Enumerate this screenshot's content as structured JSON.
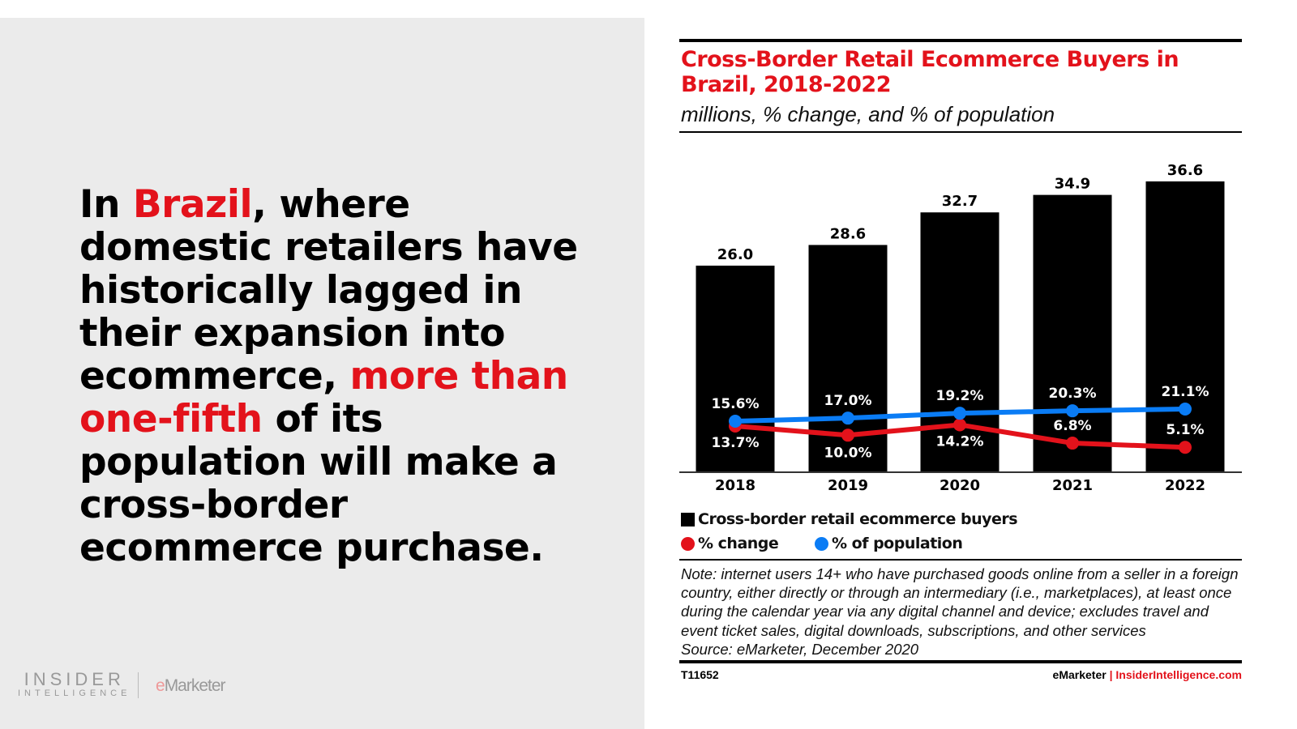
{
  "headline": {
    "p1": "In ",
    "p2": "Brazil",
    "p3": ", where domestic retailers have historically lagged in their expansion into ecommerce, ",
    "p4": "more than one-fifth",
    "p5": " of its population will make a cross-border ecommerce purchase."
  },
  "logos": {
    "insider": "INSIDER",
    "intelligence": "INTELLIGENCE",
    "emarketer_e": "e",
    "emarketer_rest": "Marketer"
  },
  "chart_data": {
    "type": "bar",
    "title": "Cross-Border Retail Ecommerce Buyers in Brazil, 2018-2022",
    "subtitle": "millions, % change, and % of population",
    "categories": [
      "2018",
      "2019",
      "2020",
      "2021",
      "2022"
    ],
    "series": [
      {
        "name": "Cross-border retail ecommerce buyers",
        "type": "bar",
        "values": [
          26.0,
          28.6,
          32.7,
          34.9,
          36.6
        ],
        "labels": [
          "26.0",
          "28.6",
          "32.7",
          "34.9",
          "36.6"
        ],
        "color": "#000000"
      },
      {
        "name": "% change",
        "type": "line",
        "values": [
          13.7,
          10.0,
          14.2,
          6.8,
          5.1
        ],
        "labels": [
          "13.7%",
          "10.0%",
          "14.2%",
          "6.8%",
          "5.1%"
        ],
        "color": "#e3121b"
      },
      {
        "name": "% of population",
        "type": "line",
        "values": [
          15.6,
          17.0,
          19.2,
          20.3,
          21.1
        ],
        "labels": [
          "15.6%",
          "17.0%",
          "19.2%",
          "20.3%",
          "21.1%"
        ],
        "color": "#0a7cf5"
      }
    ],
    "grid": false,
    "legend": "bottom",
    "note": "Note: internet users 14+ who have purchased goods online from a seller in a foreign country, either directly or through an intermediary (i.e., marketplaces), at least once during the calendar year via any digital channel and device; excludes travel and event ticket sales, digital downloads, subscriptions, and other services",
    "source": "Source: eMarketer, December 2020",
    "code": "T11652",
    "credit_a": "eMarketer",
    "credit_sep": " | ",
    "credit_b": "InsiderIntelligence.com"
  }
}
